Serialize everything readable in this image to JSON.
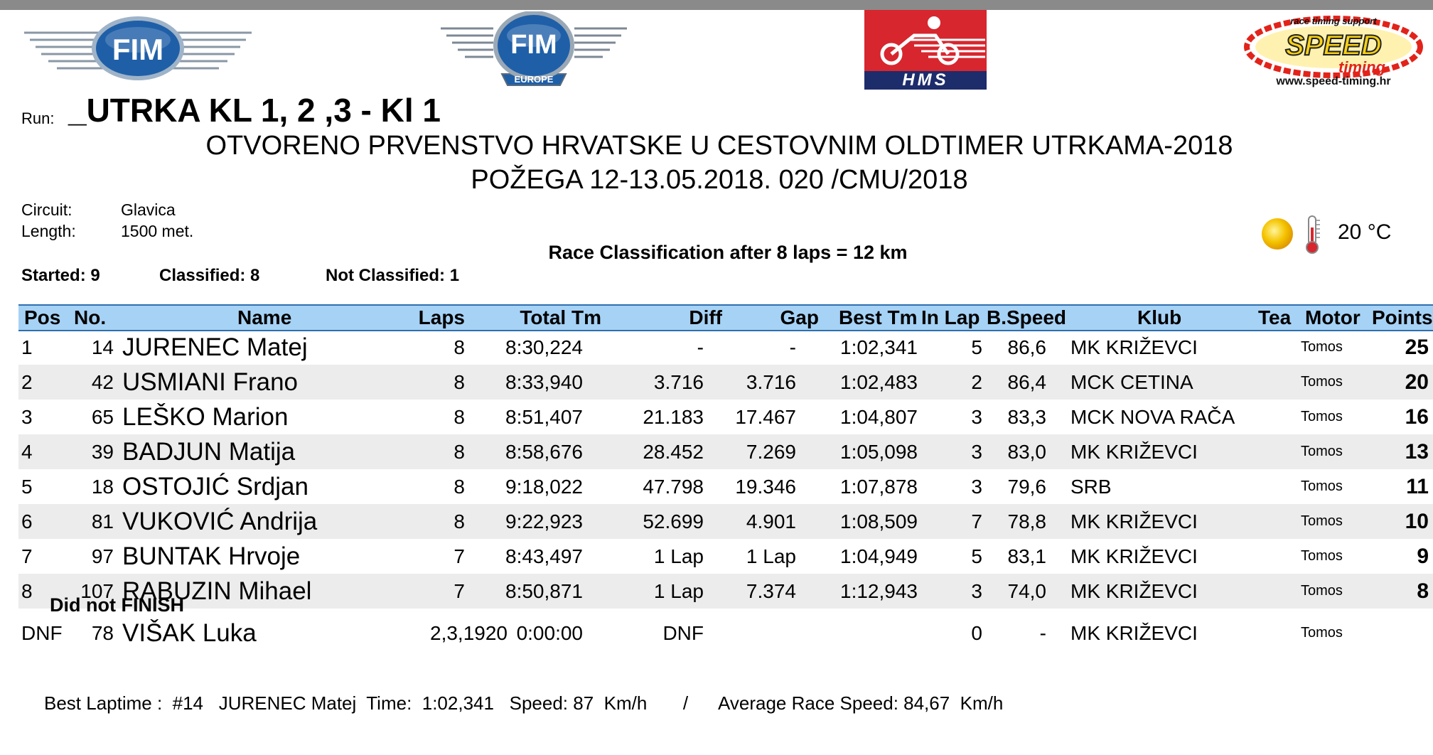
{
  "run": {
    "label": "Run:",
    "title": "_UTRKA KL 1, 2 ,3 - Kl 1"
  },
  "event": {
    "line1": "OTVORENO PRVENSTVO HRVATSKE U CESTOVNIM OLDTIMER UTRKAMA-2018",
    "line2": "POŽEGA 12-13.05.2018.  020 /CMU/2018"
  },
  "logos": {
    "fim": "FIM",
    "fim_europe": "FIM",
    "fim_europe_sub": "EUROPE",
    "hms": "HMS",
    "speed_top": "race timing support",
    "speed": "SPEED",
    "speed_sub": "timing",
    "speed_url": "www.speed-timing.hr"
  },
  "circuit": {
    "circuit_label": "Circuit:",
    "circuit_value": "Glavica",
    "length_label": "Length:",
    "length_value": "1500  met."
  },
  "weather": {
    "icons": [
      "sun-icon",
      "thermometer-icon"
    ],
    "temperature": "20 °C"
  },
  "classification_title": "Race Classification after 8 laps = 12 km",
  "summary": {
    "started": "Started: 9",
    "classified": "Classified: 8",
    "not_classified": "Not Classified: 1"
  },
  "columns": {
    "pos": "Pos",
    "no": "No.",
    "name": "Name",
    "laps": "Laps",
    "total": "Total Tm",
    "diff": "Diff",
    "gap": "Gap",
    "best": "Best Tm",
    "inlap": "In Lap",
    "bspeed": "B.Speed",
    "klub": "Klub",
    "tea": "Tea",
    "motor": "Motor",
    "points": "Points"
  },
  "results": [
    {
      "pos": "1",
      "no": "14",
      "name": "JURENEC Matej",
      "laps": "8",
      "total": "8:30,224",
      "diff": "-",
      "gap": "-",
      "best": "1:02,341",
      "inlap": "5",
      "bspeed": "86,6",
      "klub": "MK KRIŽEVCI",
      "motor": "Tomos",
      "points": "25"
    },
    {
      "pos": "2",
      "no": "42",
      "name": "USMIANI Frano",
      "laps": "8",
      "total": "8:33,940",
      "diff": "3.716",
      "gap": "3.716",
      "best": "1:02,483",
      "inlap": "2",
      "bspeed": "86,4",
      "klub": "MCK CETINA",
      "motor": "Tomos",
      "points": "20"
    },
    {
      "pos": "3",
      "no": "65",
      "name": "LEŠKO Marion",
      "laps": "8",
      "total": "8:51,407",
      "diff": "21.183",
      "gap": "17.467",
      "best": "1:04,807",
      "inlap": "3",
      "bspeed": "83,3",
      "klub": "MCK NOVA RAČA",
      "motor": "Tomos",
      "points": "16"
    },
    {
      "pos": "4",
      "no": "39",
      "name": "BADJUN Matija",
      "laps": "8",
      "total": "8:58,676",
      "diff": "28.452",
      "gap": "7.269",
      "best": "1:05,098",
      "inlap": "3",
      "bspeed": "83,0",
      "klub": "MK KRIŽEVCI",
      "motor": "Tomos",
      "points": "13"
    },
    {
      "pos": "5",
      "no": "18",
      "name": "OSTOJIĆ Srdjan",
      "laps": "8",
      "total": "9:18,022",
      "diff": "47.798",
      "gap": "19.346",
      "best": "1:07,878",
      "inlap": "3",
      "bspeed": "79,6",
      "klub": "SRB",
      "motor": "Tomos",
      "points": "11"
    },
    {
      "pos": "6",
      "no": "81",
      "name": "VUKOVIĆ Andrija",
      "laps": "8",
      "total": "9:22,923",
      "diff": "52.699",
      "gap": "4.901",
      "best": "1:08,509",
      "inlap": "7",
      "bspeed": "78,8",
      "klub": "MK KRIŽEVCI",
      "motor": "Tomos",
      "points": "10"
    },
    {
      "pos": "7",
      "no": "97",
      "name": "BUNTAK Hrvoje",
      "laps": "7",
      "total": "8:43,497",
      "diff": "1 Lap",
      "gap": "1 Lap",
      "best": "1:04,949",
      "inlap": "5",
      "bspeed": "83,1",
      "klub": "MK KRIŽEVCI",
      "motor": "Tomos",
      "points": "9"
    },
    {
      "pos": "8",
      "no": "107",
      "name": "RABUZIN Mihael",
      "laps": "7",
      "total": "8:50,871",
      "diff": "1 Lap",
      "gap": "7.374",
      "best": "1:12,943",
      "inlap": "3",
      "bspeed": "74,0",
      "klub": "MK KRIŽEVCI",
      "motor": "Tomos",
      "points": "8"
    }
  ],
  "dnf_title": "Did not FINISH",
  "dnf": {
    "pos": "DNF",
    "no": "78",
    "name": "VIŠAK Luka",
    "laps": "2,3,1920",
    "total": "0:00:00",
    "diff": "DNF",
    "inlap": "0",
    "bspeed": "-",
    "klub": "MK KRIŽEVCI",
    "motor": "Tomos"
  },
  "footer": "Best Laptime :  #14   JURENEC Matej  Time:  1:02,341   Speed: 87  Km/h       /      Average Race Speed: 84,67  Km/h",
  "colors": {
    "header_bg": "#a6d2f5",
    "header_border": "#2f6fae",
    "alt_row": "#ececec",
    "fim_blue": "#1f5fa8",
    "hms_red": "#d7262e",
    "hms_navy": "#1d2c6b",
    "speed_yellow": "#f7d116",
    "speed_red": "#e2231a"
  }
}
